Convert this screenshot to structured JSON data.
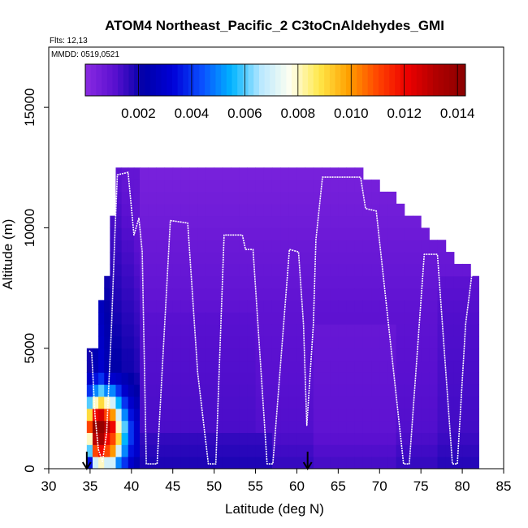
{
  "chart_data": {
    "type": "heatmap",
    "title": "ATOM4 Northeast_Pacific_2 C3toCnAldehydes_GMI",
    "flights_label": "Flts: 12,13",
    "mmdd_label": "MMDD: 0519,0521",
    "xlabel": "Latitude (deg N)",
    "ylabel": "Altitude (m)",
    "xlim": [
      30,
      85
    ],
    "ylim": [
      0,
      17500
    ],
    "x_ticks": [
      "30",
      "35",
      "40",
      "45",
      "50",
      "55",
      "60",
      "65",
      "70",
      "75",
      "80",
      "85"
    ],
    "y_ticks": [
      "0",
      "5000",
      "10000",
      "15000"
    ],
    "colorbar": {
      "range": [
        0,
        0.0143
      ],
      "ticks": [
        "0.002",
        "0.004",
        "0.006",
        "0.008",
        "0.010",
        "0.012",
        "0.014"
      ],
      "tick_values": [
        0.002,
        0.004,
        0.006,
        0.008,
        0.01,
        0.012,
        0.014
      ],
      "colors": [
        "#8a2be2",
        "#5a10d0",
        "#0000a8",
        "#0000d8",
        "#0a50ff",
        "#00b4ff",
        "#b8e8ff",
        "#fffff0",
        "#ffe84a",
        "#ffa000",
        "#ff4400",
        "#ee0000",
        "#b00000",
        "#8a0000"
      ]
    },
    "markers": [
      {
        "lat": 34.6,
        "symbol": "arrow-down"
      },
      {
        "lat": 61.3,
        "symbol": "arrow-down"
      }
    ],
    "flight_track": [
      [
        34.9,
        4900
      ],
      [
        35.2,
        4800
      ],
      [
        35.6,
        2200
      ],
      [
        36.0,
        800
      ],
      [
        36.5,
        300
      ],
      [
        37.0,
        1500
      ],
      [
        37.6,
        6000
      ],
      [
        38.0,
        9800
      ],
      [
        38.3,
        12200
      ],
      [
        39.6,
        12300
      ],
      [
        40.3,
        9700
      ],
      [
        40.9,
        10400
      ],
      [
        41.3,
        9000
      ],
      [
        41.8,
        200
      ],
      [
        43.1,
        200
      ],
      [
        44.7,
        10300
      ],
      [
        46.8,
        10200
      ],
      [
        48.0,
        4000
      ],
      [
        49.3,
        200
      ],
      [
        50.2,
        200
      ],
      [
        51.2,
        9700
      ],
      [
        53.4,
        9700
      ],
      [
        53.8,
        9100
      ],
      [
        54.7,
        9100
      ],
      [
        56.4,
        200
      ],
      [
        57.1,
        200
      ],
      [
        59.1,
        9100
      ],
      [
        60.2,
        9000
      ],
      [
        60.8,
        6000
      ],
      [
        61.2,
        1800
      ],
      [
        62.0,
        6000
      ],
      [
        62.3,
        9500
      ],
      [
        63.1,
        12100
      ],
      [
        67.7,
        12100
      ],
      [
        68.3,
        10800
      ],
      [
        69.6,
        10700
      ],
      [
        72.9,
        200
      ],
      [
        73.6,
        200
      ],
      [
        75.4,
        8900
      ],
      [
        77.0,
        8900
      ],
      [
        78.8,
        200
      ],
      [
        79.4,
        200
      ],
      [
        80.4,
        6000
      ],
      [
        81.5,
        9000
      ],
      [
        82.0,
        9500
      ]
    ],
    "field_columns": [
      {
        "lat": [
          34.6,
          35.3
        ],
        "top": 5000,
        "v": [
          0.0035,
          0.006,
          0.008,
          0.011,
          0.009,
          0.006,
          0.004,
          0.003,
          0.002
        ]
      },
      {
        "lat": [
          35.3,
          36.0
        ],
        "top": 5000,
        "v": [
          0.007,
          0.011,
          0.013,
          0.014,
          0.012,
          0.008,
          0.005,
          0.0035,
          0.0025
        ]
      },
      {
        "lat": [
          36.0,
          36.7
        ],
        "top": 7000,
        "v": [
          0.008,
          0.012,
          0.0135,
          0.014,
          0.0125,
          0.009,
          0.006,
          0.004,
          0.003
        ]
      },
      {
        "lat": [
          36.7,
          37.4
        ],
        "top": 8000,
        "v": [
          0.007,
          0.011,
          0.012,
          0.013,
          0.011,
          0.008,
          0.005,
          0.003,
          0.0025
        ]
      },
      {
        "lat": [
          37.4,
          38.1
        ],
        "top": 10400,
        "v": [
          0.007,
          0.01,
          0.011,
          0.012,
          0.01,
          0.007,
          0.005,
          0.003,
          0.0022
        ]
      },
      {
        "lat": [
          38.1,
          38.8
        ],
        "top": 12400,
        "v": [
          0.005,
          0.007,
          0.009,
          0.008,
          0.007,
          0.0055,
          0.004,
          0.0028,
          0.0022
        ]
      },
      {
        "lat": [
          38.8,
          39.6
        ],
        "top": 12400,
        "v": [
          0.004,
          0.005,
          0.0055,
          0.006,
          0.005,
          0.004,
          0.003,
          0.0025,
          0.002
        ]
      },
      {
        "lat": [
          39.6,
          40.3
        ],
        "top": 12400,
        "v": [
          0.003,
          0.0035,
          0.004,
          0.004,
          0.0035,
          0.003,
          0.0025,
          0.0022,
          0.002
        ]
      },
      {
        "lat": [
          40.3,
          41.0
        ],
        "top": 12400,
        "v": [
          0.0025,
          0.003,
          0.003,
          0.003,
          0.0028,
          0.0025,
          0.0022,
          0.002,
          0.0018
        ]
      }
    ]
  }
}
